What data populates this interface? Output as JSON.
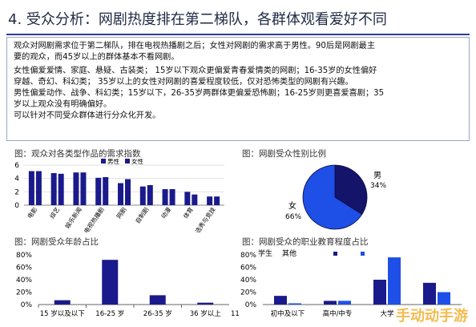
{
  "page_title": "4.  受众分析：网剧热度排在第二梯队，各群体观看爱好不同",
  "summary": {
    "line1": "观众对网剧需求位于第二梯队，排在电视热播剧之后；女性对网剧的需求高于男性。90后是网剧最主",
    "line2": "要的观众，而45岁以上的群体基本不看网剧。",
    "line3": "女性偏爱爱情、家庭、悬疑、古装类；   15岁以下观众更偏爱青春爱情类的网剧；16-35岁的女性偏好",
    "line4": "穿越、奇幻、科幻类；   35岁以上的女性对网剧的喜爱程度较低，仅对恐怖类型的网剧有兴趣。",
    "line5": "男性偏爱动作、战争、科幻类；15岁以下，26-35岁两群体更偏爱恐怖剧；16-25岁则更喜爱喜剧；35",
    "line6": "岁以上观众没有明确偏好。",
    "line7": "可以针对不同受众群体进行分众化开发。"
  },
  "fig_titles": {
    "demand": "图：观众对各类型作品的需求指数",
    "gender": "图：网剧受众性别比例",
    "age": "图：网剧受众年龄占比",
    "education": "图：网剧受众的职业教育程度占比"
  },
  "chart_data": [
    {
      "id": "demand",
      "type": "bar",
      "categories": [
        "电影",
        "综艺",
        "娱乐新闻",
        "电视热播剧",
        "网剧",
        "自制剧",
        "动漫",
        "体育",
        "选秀与竞技"
      ],
      "series": [
        {
          "name": "男性",
          "values": [
            5.1,
            4.8,
            4.9,
            4.1,
            3.3,
            2.8,
            2.4,
            2.0,
            1.3
          ]
        },
        {
          "name": "女性",
          "values": [
            5.1,
            4.7,
            4.9,
            4.2,
            3.9,
            3.0,
            2.4,
            1.6,
            1.3
          ]
        }
      ],
      "yticks": [
        "0",
        "2",
        "4",
        "6"
      ],
      "ylim": [
        0,
        6
      ],
      "legend_position": "top-right",
      "colors": [
        "#1a1a8c",
        "#1a1a8c"
      ]
    },
    {
      "id": "gender",
      "type": "pie",
      "slices": [
        {
          "name": "男",
          "value": 34,
          "label": "34%",
          "color": "#14146b"
        },
        {
          "name": "女",
          "value": 66,
          "label": "66%",
          "color": "#1e4fe6"
        }
      ]
    },
    {
      "id": "age",
      "type": "bar",
      "categories": [
        "15 岁以及以下",
        "16-25 岁",
        "26-35 岁",
        "36 岁以上"
      ],
      "values": [
        7,
        72,
        15,
        3
      ],
      "yticks": [
        "0%",
        "20%",
        "40%",
        "60%",
        "80%"
      ],
      "ylim": [
        0,
        80
      ],
      "xlabel_extra": "11",
      "color": "#1a1a8c"
    },
    {
      "id": "education",
      "type": "bar",
      "categories": [
        "初中及以下",
        "高中/中专",
        "大学"
      ],
      "series": [
        {
          "name": "学生",
          "values": [
            14,
            6,
            40
          ],
          "color": "#1a1a8c"
        },
        {
          "name": "其他",
          "values": [
            2,
            6,
            76
          ],
          "color": "#1e4fe6"
        }
      ],
      "yticks": [
        "0%",
        "20%",
        "40%",
        "60%",
        "80%"
      ],
      "ylim": [
        0,
        80
      ],
      "extra_group": {
        "values": [
          35,
          20
        ]
      },
      "legend_position": "top-left"
    }
  ],
  "watermark": "手动动手游"
}
